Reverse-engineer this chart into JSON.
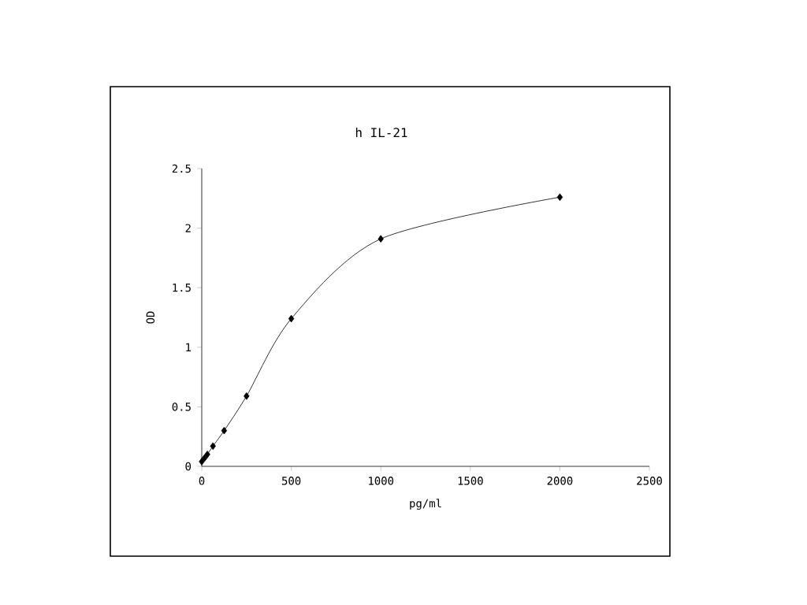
{
  "chart_data": {
    "type": "line",
    "title": "h IL-21",
    "xlabel": "pg/ml",
    "ylabel": "OD",
    "x": [
      0,
      15.6,
      31.25,
      62.5,
      125,
      250,
      500,
      1000,
      2000
    ],
    "series": [
      {
        "color": "#000000",
        "values": [
          0.04,
          0.07,
          0.1,
          0.17,
          0.3,
          0.59,
          1.24,
          1.91,
          2.26
        ]
      }
    ],
    "xlim": [
      0,
      2500
    ],
    "xticks": [
      0,
      500,
      1000,
      1500,
      2000,
      2500
    ],
    "ylim": [
      0,
      2.5
    ],
    "yticks": [
      0,
      0.5,
      1,
      1.5,
      2,
      2.5
    ],
    "grid": false,
    "marker": "diamond",
    "line_style": "solid"
  }
}
